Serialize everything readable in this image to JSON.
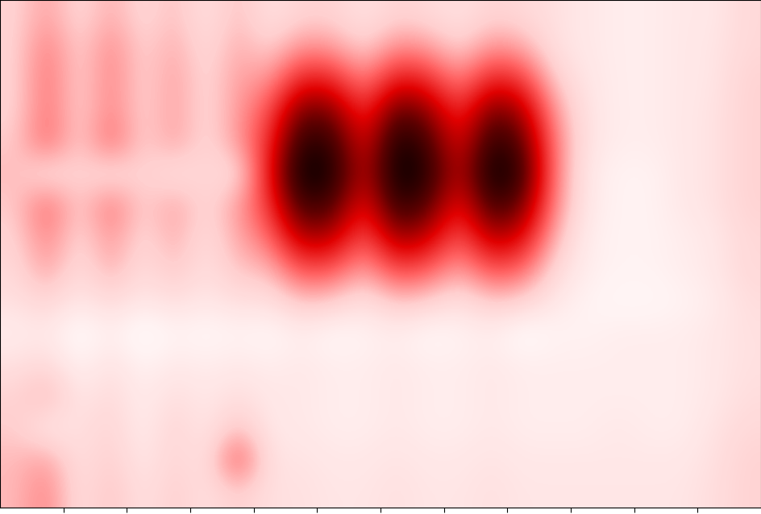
{
  "chart_data": {
    "type": "heatmap",
    "xlim": [
      0,
      12
    ],
    "ylim": [
      0,
      8
    ],
    "xticks": [
      1,
      2,
      3,
      4,
      5,
      6,
      7,
      8,
      9,
      10,
      11
    ],
    "yticks": [],
    "tick_labels": false,
    "cells": [
      [
        0.2,
        0.3,
        0.18,
        0.28,
        0.18,
        0.25,
        0.15,
        0.25,
        0.15,
        0.2,
        0.2,
        0.15,
        0.2,
        0.18,
        0.15,
        0.2,
        0.18,
        0.15,
        0.12,
        0.1,
        0.1,
        0.12,
        0.12,
        0.18
      ],
      [
        0.2,
        0.36,
        0.2,
        0.34,
        0.2,
        0.28,
        0.17,
        0.28,
        0.2,
        0.32,
        0.3,
        0.2,
        0.33,
        0.3,
        0.2,
        0.32,
        0.28,
        0.15,
        0.12,
        0.1,
        0.1,
        0.12,
        0.13,
        0.18
      ],
      [
        0.2,
        0.38,
        0.2,
        0.35,
        0.2,
        0.3,
        0.18,
        0.3,
        0.3,
        0.53,
        0.51,
        0.33,
        0.55,
        0.5,
        0.33,
        0.53,
        0.47,
        0.21,
        0.13,
        0.1,
        0.1,
        0.12,
        0.13,
        0.2
      ],
      [
        0.2,
        0.38,
        0.2,
        0.35,
        0.2,
        0.3,
        0.18,
        0.3,
        0.43,
        0.75,
        0.72,
        0.47,
        0.78,
        0.7,
        0.47,
        0.75,
        0.66,
        0.3,
        0.14,
        0.1,
        0.1,
        0.12,
        0.14,
        0.2
      ],
      [
        0.22,
        0.4,
        0.2,
        0.4,
        0.2,
        0.3,
        0.18,
        0.3,
        0.5,
        0.88,
        0.85,
        0.55,
        0.92,
        0.82,
        0.55,
        0.88,
        0.78,
        0.35,
        0.14,
        0.1,
        0.1,
        0.12,
        0.14,
        0.2
      ],
      [
        0.25,
        0.15,
        0.22,
        0.15,
        0.22,
        0.15,
        0.2,
        0.15,
        0.55,
        0.95,
        0.9,
        0.6,
        0.95,
        0.88,
        0.6,
        0.95,
        0.85,
        0.35,
        0.12,
        0.08,
        0.08,
        0.12,
        0.14,
        0.2
      ],
      [
        0.22,
        0.4,
        0.2,
        0.38,
        0.2,
        0.3,
        0.18,
        0.3,
        0.48,
        0.84,
        0.8,
        0.52,
        0.87,
        0.78,
        0.52,
        0.84,
        0.74,
        0.33,
        0.12,
        0.08,
        0.08,
        0.12,
        0.14,
        0.2
      ],
      [
        0.2,
        0.35,
        0.18,
        0.32,
        0.18,
        0.28,
        0.16,
        0.28,
        0.38,
        0.66,
        0.64,
        0.41,
        0.69,
        0.62,
        0.41,
        0.66,
        0.58,
        0.26,
        0.1,
        0.08,
        0.08,
        0.1,
        0.12,
        0.18
      ],
      [
        0.18,
        0.3,
        0.16,
        0.28,
        0.16,
        0.24,
        0.15,
        0.24,
        0.25,
        0.44,
        0.42,
        0.28,
        0.46,
        0.41,
        0.28,
        0.44,
        0.39,
        0.18,
        0.1,
        0.08,
        0.08,
        0.1,
        0.12,
        0.18
      ],
      [
        0.15,
        0.2,
        0.12,
        0.18,
        0.12,
        0.16,
        0.12,
        0.16,
        0.15,
        0.24,
        0.22,
        0.15,
        0.24,
        0.21,
        0.15,
        0.23,
        0.2,
        0.12,
        0.08,
        0.06,
        0.06,
        0.08,
        0.1,
        0.16
      ],
      [
        0.1,
        0.12,
        0.04,
        0.1,
        0.03,
        0.08,
        0.06,
        0.08,
        0.06,
        0.1,
        0.06,
        0.08,
        0.1,
        0.06,
        0.08,
        0.1,
        0.04,
        0.08,
        0.08,
        0.1,
        0.1,
        0.1,
        0.12,
        0.15
      ],
      [
        0.15,
        0.18,
        0.08,
        0.15,
        0.08,
        0.12,
        0.1,
        0.12,
        0.1,
        0.12,
        0.1,
        0.1,
        0.12,
        0.1,
        0.1,
        0.12,
        0.1,
        0.1,
        0.1,
        0.1,
        0.1,
        0.1,
        0.12,
        0.15
      ],
      [
        0.2,
        0.28,
        0.12,
        0.18,
        0.1,
        0.16,
        0.12,
        0.16,
        0.12,
        0.12,
        0.1,
        0.1,
        0.12,
        0.1,
        0.1,
        0.12,
        0.1,
        0.1,
        0.1,
        0.1,
        0.1,
        0.1,
        0.12,
        0.16
      ],
      [
        0.22,
        0.12,
        0.15,
        0.2,
        0.1,
        0.2,
        0.12,
        0.25,
        0.12,
        0.12,
        0.1,
        0.1,
        0.12,
        0.1,
        0.1,
        0.12,
        0.1,
        0.1,
        0.1,
        0.12,
        0.1,
        0.1,
        0.14,
        0.18
      ],
      [
        0.25,
        0.3,
        0.15,
        0.22,
        0.12,
        0.2,
        0.14,
        0.45,
        0.14,
        0.14,
        0.12,
        0.12,
        0.14,
        0.12,
        0.12,
        0.14,
        0.12,
        0.12,
        0.12,
        0.12,
        0.12,
        0.12,
        0.15,
        0.2
      ],
      [
        0.25,
        0.35,
        0.15,
        0.25,
        0.14,
        0.22,
        0.15,
        0.22,
        0.15,
        0.15,
        0.13,
        0.13,
        0.15,
        0.13,
        0.13,
        0.15,
        0.13,
        0.13,
        0.13,
        0.13,
        0.13,
        0.13,
        0.16,
        0.2
      ]
    ]
  }
}
